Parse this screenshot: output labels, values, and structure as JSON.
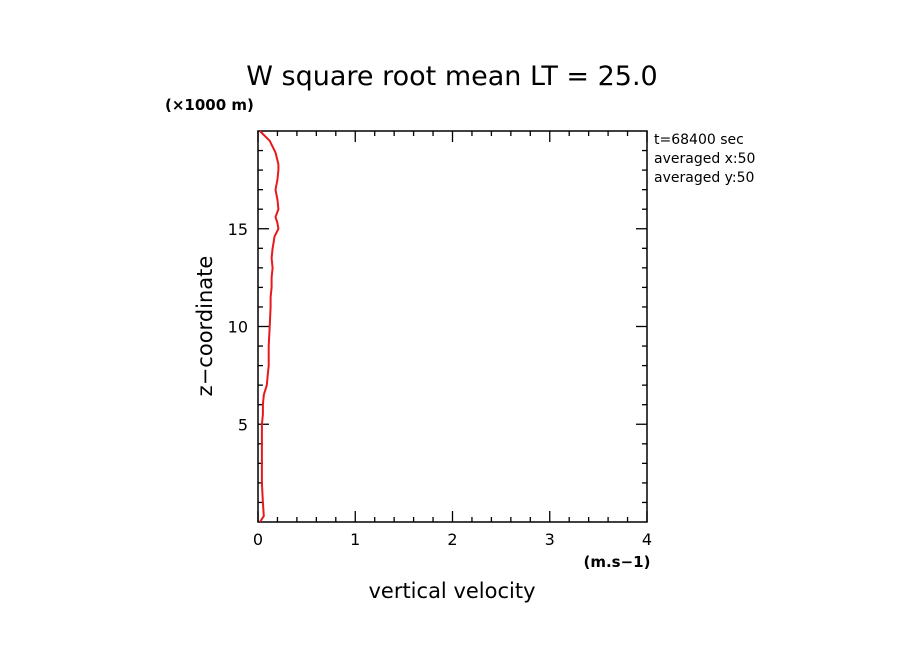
{
  "chart_data": {
    "type": "line",
    "title": "W square root mean LT = 25.0",
    "xlabel": "vertical velocity",
    "ylabel": "z−coordinate",
    "x_unit": "(m.s−1)",
    "y_unit": "(×1000 m)",
    "xlim": [
      0,
      4
    ],
    "ylim": [
      0,
      20
    ],
    "x_ticks": [
      0,
      1,
      2,
      3,
      4
    ],
    "x_tick_labels": [
      "0",
      "1",
      "2",
      "3",
      "4"
    ],
    "y_ticks": [
      5,
      10,
      15
    ],
    "y_tick_labels": [
      "5",
      "10",
      "15"
    ],
    "annotations": [
      "t=68400 sec",
      "averaged  x:50",
      "averaged  y:50"
    ],
    "series": [
      {
        "name": "W square root mean",
        "color": "#e8191c",
        "x": [
          0.02,
          0.06,
          0.05,
          0.04,
          0.04,
          0.04,
          0.04,
          0.05,
          0.05,
          0.06,
          0.09,
          0.1,
          0.11,
          0.11,
          0.12,
          0.13,
          0.13,
          0.14,
          0.14,
          0.15,
          0.14,
          0.15,
          0.16,
          0.17,
          0.21,
          0.2,
          0.18,
          0.21,
          0.2,
          0.18,
          0.2,
          0.21,
          0.21,
          0.18,
          0.12,
          0.02
        ],
        "y": [
          0.0,
          0.3,
          1.0,
          2.0,
          3.0,
          4.0,
          5.0,
          5.5,
          6.0,
          6.5,
          7.0,
          7.5,
          8.0,
          9.0,
          10.0,
          11.0,
          11.5,
          12.0,
          12.5,
          13.0,
          13.5,
          14.0,
          14.3,
          14.6,
          15.0,
          15.3,
          15.6,
          16.0,
          16.5,
          17.0,
          17.5,
          18.0,
          18.3,
          18.9,
          19.5,
          20.0
        ]
      }
    ]
  }
}
